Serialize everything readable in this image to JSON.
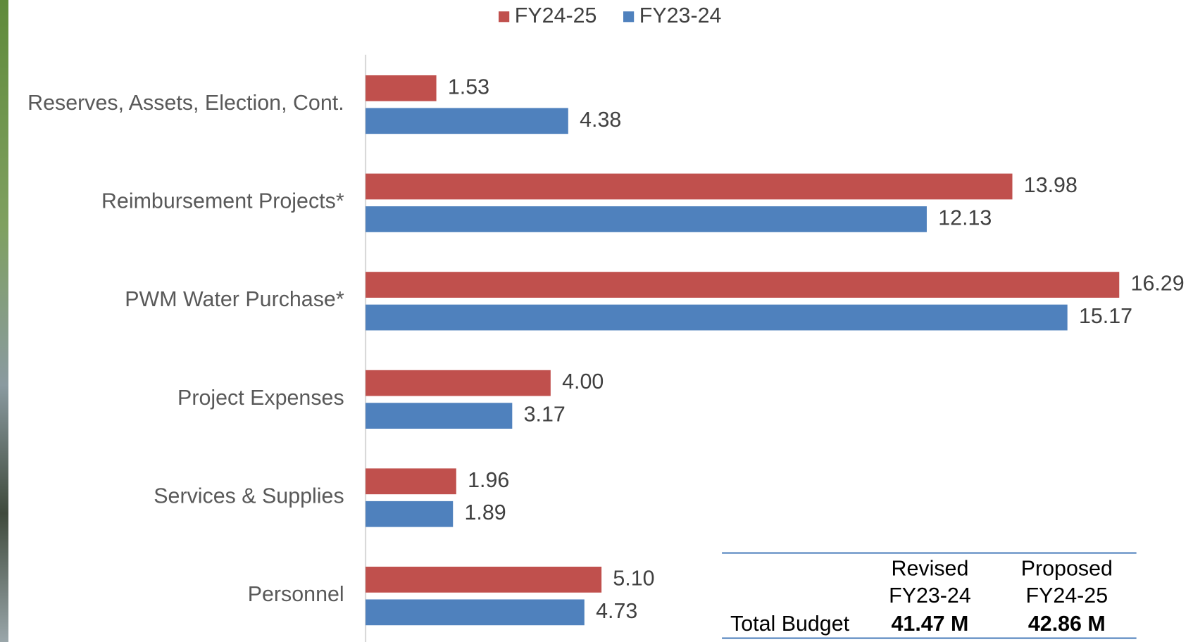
{
  "chart_data": {
    "type": "bar",
    "orientation": "horizontal",
    "categories": [
      "Reserves, Assets, Election, Cont.",
      "Reimbursement Projects*",
      "PWM Water Purchase*",
      "Project Expenses",
      "Services & Supplies",
      "Personnel"
    ],
    "series": [
      {
        "name": "FY24-25",
        "color": "#c0504d",
        "values": [
          1.53,
          13.98,
          16.29,
          4,
          1.96,
          5.1
        ],
        "value_labels": [
          "1.53",
          "13.98",
          "16.29",
          "4.00",
          "1.96",
          "5.10"
        ]
      },
      {
        "name": "FY23-24",
        "color": "#4f81bd",
        "values": [
          4.38,
          12.13,
          15.17,
          3.17,
          1.89,
          4.73
        ],
        "value_labels": [
          "4.38",
          "12.13",
          "15.17",
          "3.17",
          "1.89",
          "4.73"
        ]
      }
    ],
    "xlim": [
      0,
      18
    ],
    "legend": "top"
  },
  "table": {
    "columns": [
      {
        "line1": "Revised",
        "line2": "FY23-24"
      },
      {
        "line1": "Proposed",
        "line2": "FY24-25"
      }
    ],
    "row": {
      "label": "Total Budget",
      "values": [
        "41.47 M",
        "42.86 M"
      ]
    }
  }
}
